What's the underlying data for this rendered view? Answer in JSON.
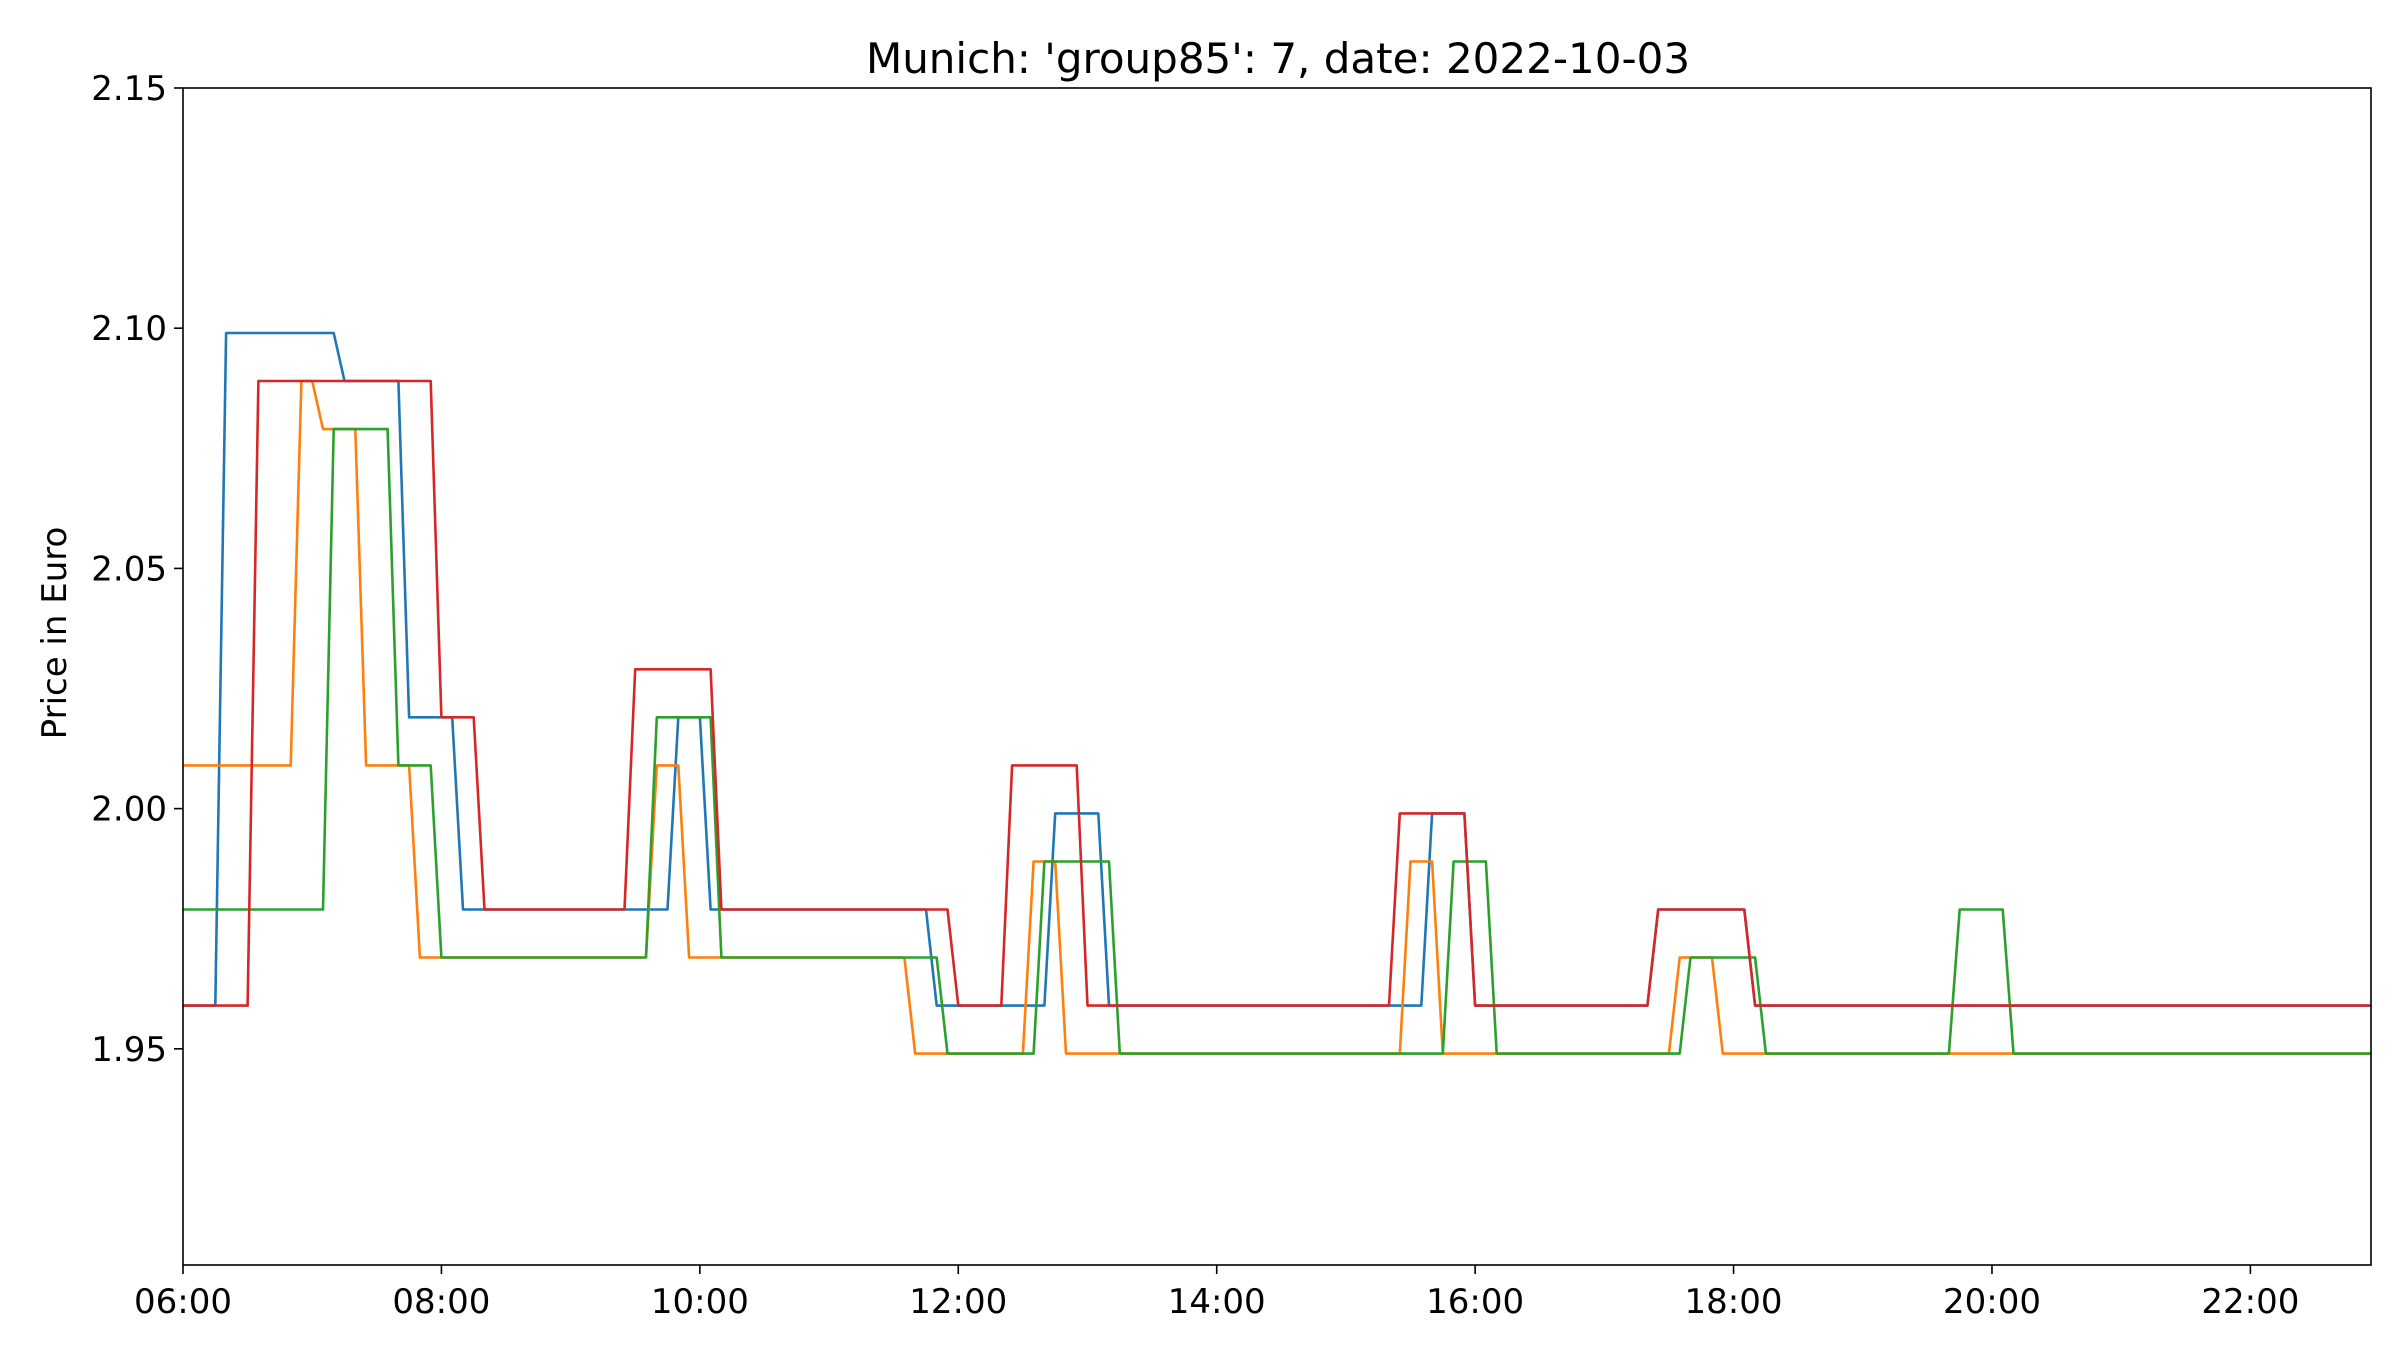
{
  "chart_data": {
    "type": "line",
    "title": "Munich: 'group85': 7, date: 2022-10-03",
    "xlabel": "",
    "ylabel": "Price in Euro",
    "x_unit": "time of day",
    "xlim": [
      "06:00",
      "22:56"
    ],
    "ylim": [
      1.905,
      2.15
    ],
    "xticks": [
      "06:00",
      "08:00",
      "10:00",
      "12:00",
      "14:00",
      "16:00",
      "18:00",
      "20:00",
      "22:00"
    ],
    "yticks": [
      "1.95",
      "2.00",
      "2.05",
      "2.10",
      "2.15"
    ],
    "grid": false,
    "legend": null,
    "series": [
      {
        "color": "#1f77b4",
        "points": [
          [
            "06:00",
            1.959
          ],
          [
            "06:15",
            1.959
          ],
          [
            "06:20",
            2.099
          ],
          [
            "07:10",
            2.099
          ],
          [
            "07:15",
            2.089
          ],
          [
            "07:40",
            2.089
          ],
          [
            "07:45",
            2.019
          ],
          [
            "08:05",
            2.019
          ],
          [
            "08:10",
            1.979
          ],
          [
            "09:45",
            1.979
          ],
          [
            "09:50",
            2.019
          ],
          [
            "10:00",
            2.019
          ],
          [
            "10:05",
            1.979
          ],
          [
            "11:45",
            1.979
          ],
          [
            "11:50",
            1.959
          ],
          [
            "12:40",
            1.959
          ],
          [
            "12:45",
            1.999
          ],
          [
            "13:05",
            1.999
          ],
          [
            "13:10",
            1.959
          ],
          [
            "15:35",
            1.959
          ],
          [
            "15:40",
            1.999
          ],
          [
            "15:55",
            1.999
          ],
          [
            "16:00",
            1.959
          ],
          [
            "17:20",
            1.959
          ],
          [
            "17:25",
            1.979
          ],
          [
            "18:05",
            1.979
          ],
          [
            "18:10",
            1.959
          ],
          [
            "22:56",
            1.959
          ]
        ]
      },
      {
        "color": "#ff7f0e",
        "points": [
          [
            "06:00",
            2.009
          ],
          [
            "06:50",
            2.009
          ],
          [
            "06:55",
            2.089
          ],
          [
            "07:00",
            2.089
          ],
          [
            "07:05",
            2.079
          ],
          [
            "07:20",
            2.079
          ],
          [
            "07:25",
            2.009
          ],
          [
            "07:45",
            2.009
          ],
          [
            "07:50",
            1.969
          ],
          [
            "09:35",
            1.969
          ],
          [
            "09:40",
            2.009
          ],
          [
            "09:50",
            2.009
          ],
          [
            "09:55",
            1.969
          ],
          [
            "11:35",
            1.969
          ],
          [
            "11:40",
            1.949
          ],
          [
            "12:30",
            1.949
          ],
          [
            "12:35",
            1.989
          ],
          [
            "12:45",
            1.989
          ],
          [
            "12:50",
            1.949
          ],
          [
            "15:25",
            1.949
          ],
          [
            "15:30",
            1.989
          ],
          [
            "15:40",
            1.989
          ],
          [
            "15:45",
            1.949
          ],
          [
            "17:30",
            1.949
          ],
          [
            "17:35",
            1.969
          ],
          [
            "17:50",
            1.969
          ],
          [
            "17:55",
            1.949
          ],
          [
            "22:56",
            1.949
          ]
        ]
      },
      {
        "color": "#2ca02c",
        "points": [
          [
            "06:00",
            1.979
          ],
          [
            "07:05",
            1.979
          ],
          [
            "07:10",
            2.079
          ],
          [
            "07:35",
            2.079
          ],
          [
            "07:40",
            2.009
          ],
          [
            "07:55",
            2.009
          ],
          [
            "08:00",
            1.969
          ],
          [
            "09:35",
            1.969
          ],
          [
            "09:40",
            2.019
          ],
          [
            "10:05",
            2.019
          ],
          [
            "10:10",
            1.969
          ],
          [
            "11:50",
            1.969
          ],
          [
            "11:55",
            1.949
          ],
          [
            "12:35",
            1.949
          ],
          [
            "12:40",
            1.989
          ],
          [
            "13:10",
            1.989
          ],
          [
            "13:15",
            1.949
          ],
          [
            "15:45",
            1.949
          ],
          [
            "15:50",
            1.989
          ],
          [
            "16:05",
            1.989
          ],
          [
            "16:10",
            1.949
          ],
          [
            "17:35",
            1.949
          ],
          [
            "17:40",
            1.969
          ],
          [
            "18:10",
            1.969
          ],
          [
            "18:15",
            1.949
          ],
          [
            "19:40",
            1.949
          ],
          [
            "19:45",
            1.979
          ],
          [
            "20:05",
            1.979
          ],
          [
            "20:10",
            1.949
          ],
          [
            "22:56",
            1.949
          ]
        ]
      },
      {
        "color": "#d62728",
        "points": [
          [
            "06:00",
            1.959
          ],
          [
            "06:30",
            1.959
          ],
          [
            "06:35",
            2.089
          ],
          [
            "07:55",
            2.089
          ],
          [
            "08:00",
            2.019
          ],
          [
            "08:15",
            2.019
          ],
          [
            "08:20",
            1.979
          ],
          [
            "09:25",
            1.979
          ],
          [
            "09:30",
            2.029
          ],
          [
            "10:05",
            2.029
          ],
          [
            "10:10",
            1.979
          ],
          [
            "11:55",
            1.979
          ],
          [
            "12:00",
            1.959
          ],
          [
            "12:20",
            1.959
          ],
          [
            "12:25",
            2.009
          ],
          [
            "12:55",
            2.009
          ],
          [
            "13:00",
            1.959
          ],
          [
            "15:20",
            1.959
          ],
          [
            "15:25",
            1.999
          ],
          [
            "15:55",
            1.999
          ],
          [
            "16:00",
            1.959
          ],
          [
            "17:20",
            1.959
          ],
          [
            "17:25",
            1.979
          ],
          [
            "18:05",
            1.979
          ],
          [
            "18:10",
            1.959
          ],
          [
            "22:56",
            1.959
          ]
        ]
      }
    ]
  }
}
